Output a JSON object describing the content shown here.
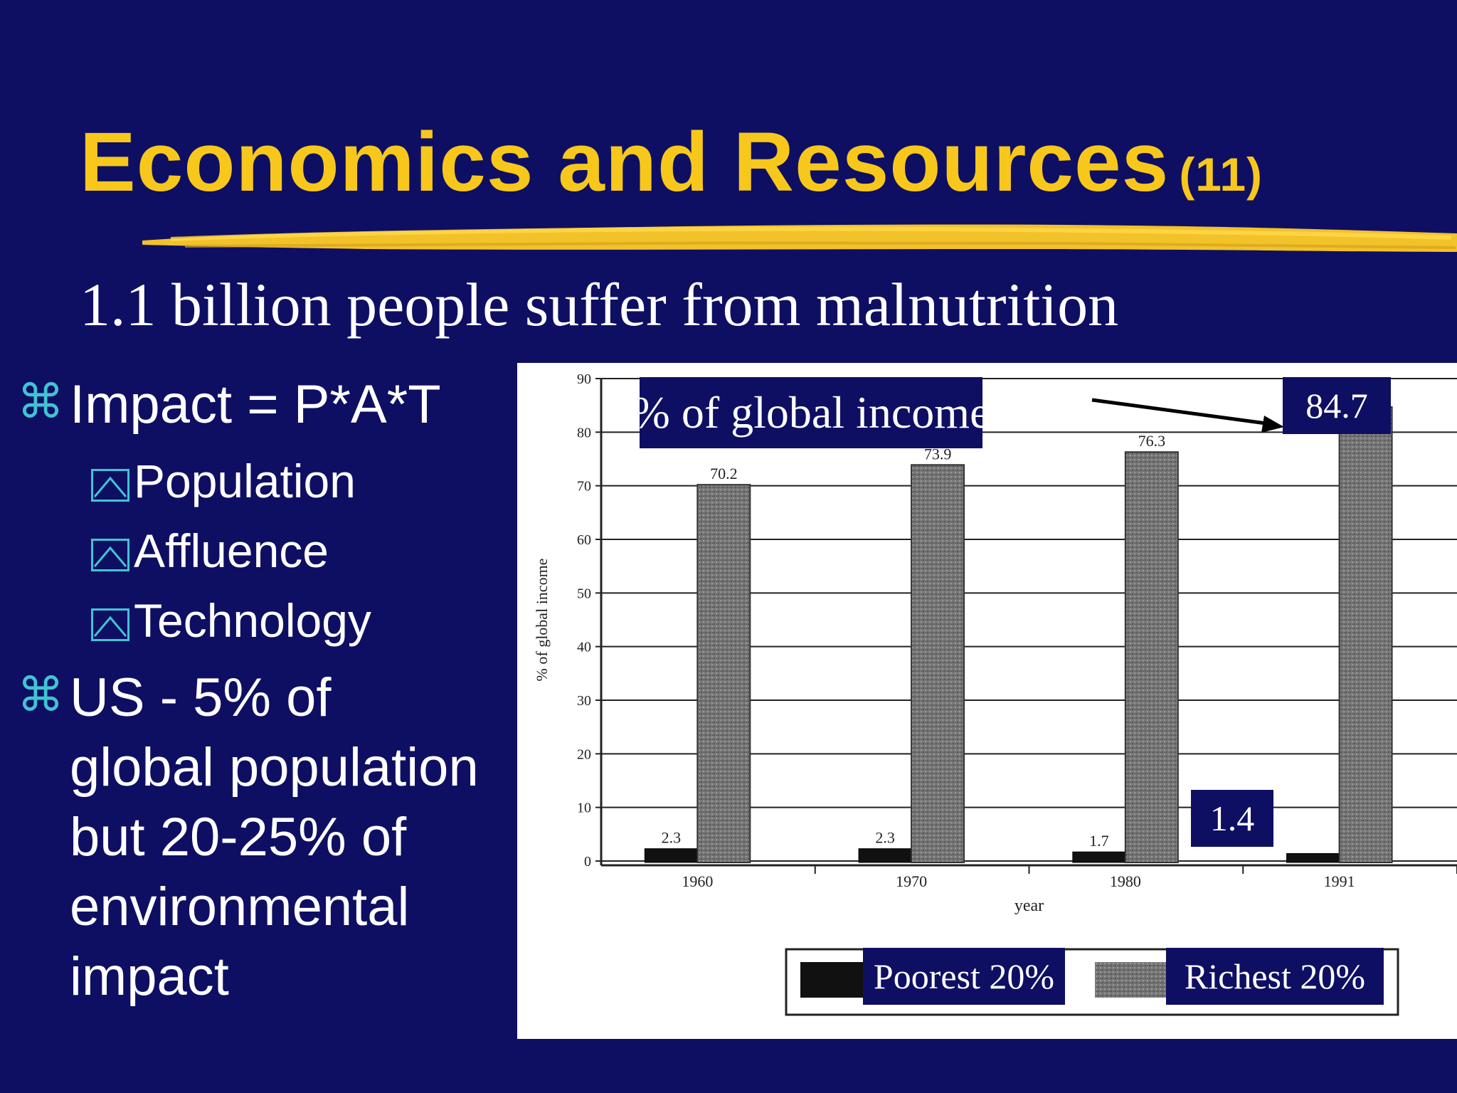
{
  "slide": {
    "title": "Economics and Resources",
    "title_number": "(11)",
    "subtitle": "1.1 billion people suffer from malnutrition",
    "colors": {
      "background": "#0e0f63",
      "title": "#f7c81b",
      "bullet_marker": "#40c4d4",
      "text": "#ffffff"
    }
  },
  "bullets": [
    {
      "marker_icon": "command-key-icon",
      "text": "Impact = P*A*T",
      "sub": [
        {
          "marker_icon": "checkbox-icon",
          "text": "Population"
        },
        {
          "marker_icon": "checkbox-icon",
          "text": "Affluence"
        },
        {
          "marker_icon": "checkbox-icon",
          "text": "Technology"
        }
      ]
    },
    {
      "marker_icon": "command-key-icon",
      "lines": [
        "US - 5% of",
        "global population",
        "but 20-25% of",
        "environmental",
        "impact"
      ]
    }
  ],
  "chart_data": {
    "type": "bar",
    "categories": [
      "1960",
      "1970",
      "1980",
      "1991"
    ],
    "series": [
      {
        "name": "Poorest 20%",
        "values": [
          2.3,
          2.3,
          1.7,
          1.4
        ],
        "color": "#111111"
      },
      {
        "name": "Richest 20%",
        "values": [
          70.2,
          73.9,
          76.3,
          84.7
        ],
        "color": "#777777"
      }
    ],
    "data_labels": {
      "poorest": [
        "2.3",
        "2.3",
        "1.7",
        ""
      ],
      "richest": [
        "70.2",
        "73.9",
        "76.3",
        ""
      ]
    },
    "xlabel": "year",
    "ylabel": "% of global income",
    "ylim": [
      0,
      90
    ],
    "yticks": [
      0,
      10,
      20,
      30,
      40,
      50,
      60,
      70,
      80,
      90
    ],
    "grid": true,
    "legend_position": "bottom",
    "callouts": {
      "heading": "% of global income",
      "richest_1991": "84.7",
      "poorest_1991": "1.4"
    }
  }
}
